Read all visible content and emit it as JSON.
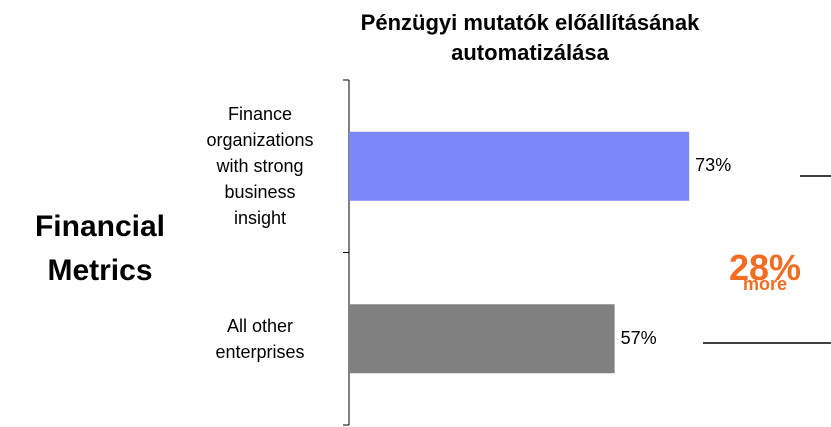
{
  "chart_data": {
    "type": "barh",
    "title": "Pénzügyi mutatók előállításának\nautomatizálása",
    "side_label": "Financial\nMetrics",
    "annotation": "28%",
    "annotation_sub": "more",
    "categories": [
      "Finance\norganizations\nwith strong\nbusiness\ninsight",
      "All other\nenterprises"
    ],
    "values": [
      73,
      57
    ],
    "value_labels": [
      "73%",
      "57%"
    ],
    "colors": [
      "#7b86f7",
      "#808080"
    ],
    "xlim": [
      0,
      100
    ]
  }
}
